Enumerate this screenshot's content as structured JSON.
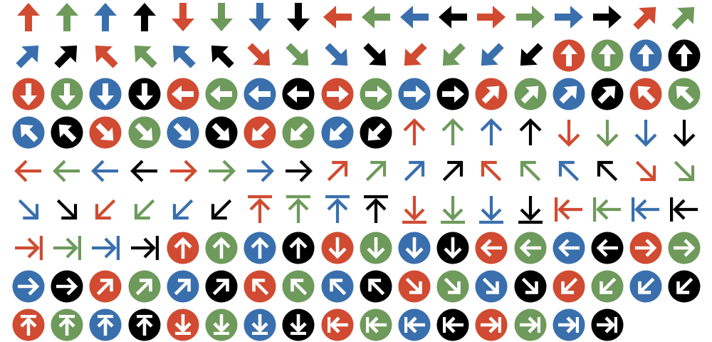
{
  "palette": {
    "red": "#d04b31",
    "green": "#6e9a5b",
    "blue": "#3a6fad",
    "black": "#000000"
  },
  "rows": [
    {
      "style": "solid-arrow",
      "icons": [
        {
          "dir": "up",
          "color": "red"
        },
        {
          "dir": "up",
          "color": "green"
        },
        {
          "dir": "up",
          "color": "blue"
        },
        {
          "dir": "up",
          "color": "black"
        },
        {
          "dir": "down",
          "color": "red"
        },
        {
          "dir": "down",
          "color": "green"
        },
        {
          "dir": "down",
          "color": "blue"
        },
        {
          "dir": "down",
          "color": "black"
        },
        {
          "dir": "left",
          "color": "red"
        },
        {
          "dir": "left",
          "color": "green"
        },
        {
          "dir": "left",
          "color": "blue"
        },
        {
          "dir": "left",
          "color": "black"
        },
        {
          "dir": "right",
          "color": "red"
        },
        {
          "dir": "right",
          "color": "green"
        },
        {
          "dir": "right",
          "color": "blue"
        },
        {
          "dir": "right",
          "color": "black"
        },
        {
          "dir": "up-right",
          "color": "red"
        },
        {
          "dir": "up-right",
          "color": "green"
        }
      ]
    },
    {
      "style": "solid-arrow",
      "icons": [
        {
          "dir": "up-right",
          "color": "blue"
        },
        {
          "dir": "up-right",
          "color": "black"
        },
        {
          "dir": "up-left",
          "color": "red"
        },
        {
          "dir": "up-left",
          "color": "green"
        },
        {
          "dir": "up-left",
          "color": "blue"
        },
        {
          "dir": "up-left",
          "color": "black"
        },
        {
          "dir": "down-right",
          "color": "red"
        },
        {
          "dir": "down-right",
          "color": "green"
        },
        {
          "dir": "down-right",
          "color": "blue"
        },
        {
          "dir": "down-right",
          "color": "black"
        },
        {
          "dir": "down-left",
          "color": "red"
        },
        {
          "dir": "down-left",
          "color": "green"
        },
        {
          "dir": "down-left",
          "color": "blue"
        },
        {
          "dir": "down-left",
          "color": "black"
        },
        {
          "dir": "up",
          "color": "red",
          "style": "circle-solid"
        },
        {
          "dir": "up",
          "color": "green",
          "style": "circle-solid"
        },
        {
          "dir": "up",
          "color": "blue",
          "style": "circle-solid"
        },
        {
          "dir": "up",
          "color": "black",
          "style": "circle-solid"
        }
      ]
    },
    {
      "style": "circle-solid",
      "icons": [
        {
          "dir": "down",
          "color": "red"
        },
        {
          "dir": "down",
          "color": "green"
        },
        {
          "dir": "down",
          "color": "blue"
        },
        {
          "dir": "down",
          "color": "black"
        },
        {
          "dir": "left",
          "color": "red"
        },
        {
          "dir": "left",
          "color": "green"
        },
        {
          "dir": "left",
          "color": "blue"
        },
        {
          "dir": "left",
          "color": "black"
        },
        {
          "dir": "right",
          "color": "red"
        },
        {
          "dir": "right",
          "color": "green"
        },
        {
          "dir": "right",
          "color": "blue"
        },
        {
          "dir": "right",
          "color": "black"
        },
        {
          "dir": "up-right",
          "color": "red"
        },
        {
          "dir": "up-right",
          "color": "green"
        },
        {
          "dir": "up-right",
          "color": "blue"
        },
        {
          "dir": "up-right",
          "color": "black"
        },
        {
          "dir": "up-left",
          "color": "red"
        },
        {
          "dir": "up-left",
          "color": "green"
        }
      ]
    },
    {
      "style": "circle-solid",
      "icons": [
        {
          "dir": "up-left",
          "color": "blue"
        },
        {
          "dir": "up-left",
          "color": "black"
        },
        {
          "dir": "down-right",
          "color": "red"
        },
        {
          "dir": "down-right",
          "color": "green"
        },
        {
          "dir": "down-right",
          "color": "blue"
        },
        {
          "dir": "down-right",
          "color": "black"
        },
        {
          "dir": "down-left",
          "color": "red"
        },
        {
          "dir": "down-left",
          "color": "green"
        },
        {
          "dir": "down-left",
          "color": "blue"
        },
        {
          "dir": "down-left",
          "color": "black"
        },
        {
          "dir": "up",
          "color": "red",
          "style": "line-arrow"
        },
        {
          "dir": "up",
          "color": "green",
          "style": "line-arrow"
        },
        {
          "dir": "up",
          "color": "blue",
          "style": "line-arrow"
        },
        {
          "dir": "up",
          "color": "black",
          "style": "line-arrow"
        },
        {
          "dir": "down",
          "color": "red",
          "style": "line-arrow"
        },
        {
          "dir": "down",
          "color": "green",
          "style": "line-arrow"
        },
        {
          "dir": "down",
          "color": "blue",
          "style": "line-arrow"
        },
        {
          "dir": "down",
          "color": "black",
          "style": "line-arrow"
        }
      ]
    },
    {
      "style": "line-arrow",
      "icons": [
        {
          "dir": "left",
          "color": "red"
        },
        {
          "dir": "left",
          "color": "green"
        },
        {
          "dir": "left",
          "color": "blue"
        },
        {
          "dir": "left",
          "color": "black"
        },
        {
          "dir": "right",
          "color": "red"
        },
        {
          "dir": "right",
          "color": "green"
        },
        {
          "dir": "right",
          "color": "blue"
        },
        {
          "dir": "right",
          "color": "black"
        },
        {
          "dir": "up-right",
          "color": "red"
        },
        {
          "dir": "up-right",
          "color": "green"
        },
        {
          "dir": "up-right",
          "color": "blue"
        },
        {
          "dir": "up-right",
          "color": "black"
        },
        {
          "dir": "up-left",
          "color": "red"
        },
        {
          "dir": "up-left",
          "color": "green"
        },
        {
          "dir": "up-left",
          "color": "blue"
        },
        {
          "dir": "up-left",
          "color": "black"
        },
        {
          "dir": "down-right",
          "color": "red"
        },
        {
          "dir": "down-right",
          "color": "green"
        }
      ]
    },
    {
      "style": "line-arrow",
      "icons": [
        {
          "dir": "down-right",
          "color": "blue"
        },
        {
          "dir": "down-right",
          "color": "black"
        },
        {
          "dir": "down-left",
          "color": "red"
        },
        {
          "dir": "down-left",
          "color": "green"
        },
        {
          "dir": "down-left",
          "color": "blue"
        },
        {
          "dir": "down-left",
          "color": "black"
        },
        {
          "dir": "up",
          "color": "red",
          "style": "line-bar"
        },
        {
          "dir": "up",
          "color": "green",
          "style": "line-bar"
        },
        {
          "dir": "up",
          "color": "blue",
          "style": "line-bar"
        },
        {
          "dir": "up",
          "color": "black",
          "style": "line-bar"
        },
        {
          "dir": "down",
          "color": "red",
          "style": "line-bar"
        },
        {
          "dir": "down",
          "color": "green",
          "style": "line-bar"
        },
        {
          "dir": "down",
          "color": "blue",
          "style": "line-bar"
        },
        {
          "dir": "down",
          "color": "black",
          "style": "line-bar"
        },
        {
          "dir": "left",
          "color": "red",
          "style": "line-bar"
        },
        {
          "dir": "left",
          "color": "green",
          "style": "line-bar"
        },
        {
          "dir": "left",
          "color": "blue",
          "style": "line-bar"
        },
        {
          "dir": "left",
          "color": "black",
          "style": "line-bar"
        }
      ]
    },
    {
      "style": "line-bar",
      "icons": [
        {
          "dir": "right",
          "color": "red"
        },
        {
          "dir": "right",
          "color": "green"
        },
        {
          "dir": "right",
          "color": "blue"
        },
        {
          "dir": "right",
          "color": "black"
        },
        {
          "dir": "up",
          "color": "red",
          "style": "circle-line"
        },
        {
          "dir": "up",
          "color": "green",
          "style": "circle-line"
        },
        {
          "dir": "up",
          "color": "blue",
          "style": "circle-line"
        },
        {
          "dir": "up",
          "color": "black",
          "style": "circle-line"
        },
        {
          "dir": "down",
          "color": "red",
          "style": "circle-line"
        },
        {
          "dir": "down",
          "color": "green",
          "style": "circle-line"
        },
        {
          "dir": "down",
          "color": "blue",
          "style": "circle-line"
        },
        {
          "dir": "down",
          "color": "black",
          "style": "circle-line"
        },
        {
          "dir": "left",
          "color": "red",
          "style": "circle-line"
        },
        {
          "dir": "left",
          "color": "green",
          "style": "circle-line"
        },
        {
          "dir": "left",
          "color": "blue",
          "style": "circle-line"
        },
        {
          "dir": "left",
          "color": "black",
          "style": "circle-line"
        },
        {
          "dir": "right",
          "color": "red",
          "style": "circle-line"
        },
        {
          "dir": "right",
          "color": "green",
          "style": "circle-line"
        }
      ]
    },
    {
      "style": "circle-line",
      "icons": [
        {
          "dir": "right",
          "color": "blue"
        },
        {
          "dir": "right",
          "color": "black"
        },
        {
          "dir": "up-right",
          "color": "red"
        },
        {
          "dir": "up-right",
          "color": "green"
        },
        {
          "dir": "up-right",
          "color": "blue"
        },
        {
          "dir": "up-right",
          "color": "black"
        },
        {
          "dir": "up-left",
          "color": "red"
        },
        {
          "dir": "up-left",
          "color": "green"
        },
        {
          "dir": "up-left",
          "color": "blue"
        },
        {
          "dir": "up-left",
          "color": "black"
        },
        {
          "dir": "down-right",
          "color": "red"
        },
        {
          "dir": "down-right",
          "color": "green"
        },
        {
          "dir": "down-right",
          "color": "blue"
        },
        {
          "dir": "down-right",
          "color": "black"
        },
        {
          "dir": "down-left",
          "color": "red"
        },
        {
          "dir": "down-left",
          "color": "green"
        },
        {
          "dir": "down-left",
          "color": "blue"
        },
        {
          "dir": "down-left",
          "color": "black"
        }
      ]
    },
    {
      "style": "circle-bar",
      "icons": [
        {
          "dir": "up",
          "color": "red"
        },
        {
          "dir": "up",
          "color": "green"
        },
        {
          "dir": "up",
          "color": "blue"
        },
        {
          "dir": "up",
          "color": "black"
        },
        {
          "dir": "down",
          "color": "red"
        },
        {
          "dir": "down",
          "color": "green"
        },
        {
          "dir": "down",
          "color": "blue"
        },
        {
          "dir": "down",
          "color": "black"
        },
        {
          "dir": "left",
          "color": "red"
        },
        {
          "dir": "left",
          "color": "green"
        },
        {
          "dir": "left",
          "color": "blue"
        },
        {
          "dir": "left",
          "color": "black"
        },
        {
          "dir": "right",
          "color": "red"
        },
        {
          "dir": "right",
          "color": "green"
        },
        {
          "dir": "right",
          "color": "blue"
        },
        {
          "dir": "right",
          "color": "black"
        }
      ]
    }
  ]
}
